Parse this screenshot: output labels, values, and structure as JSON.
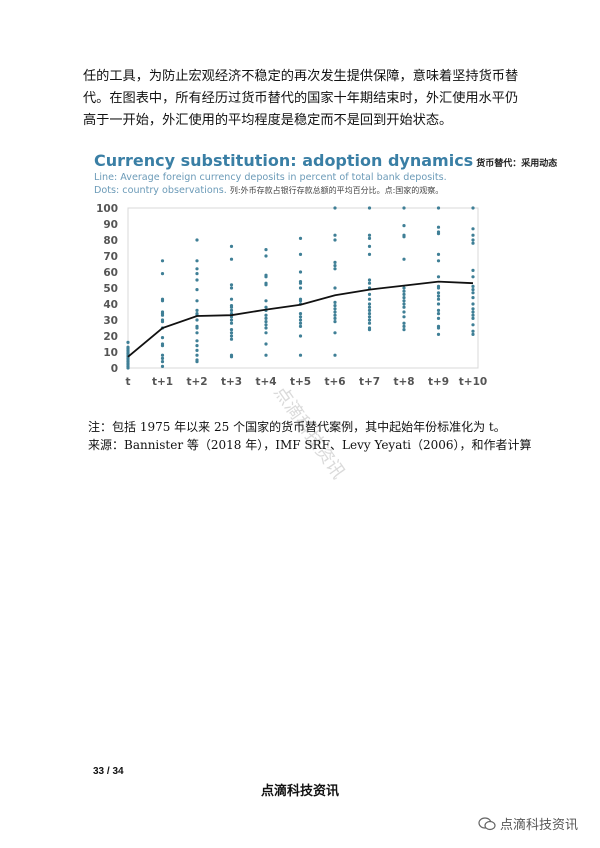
{
  "paragraph": "任的工具，为防止宏观经济不稳定的再次发生提供保障，意味着坚持货币替代。在图表中，所有经历过货币替代的国家十年期结束时，外汇使用水平仍高于一开始，外汇使用的平均程度是稳定而不是回到开始状态。",
  "chart_title": "Currency substitution: adoption dynamics",
  "chart_title_cn": "货币替代：采用动态",
  "chart_subtitle_1": "Line: Average foreign currency deposits in percent of total bank deposits.",
  "chart_subtitle_2": "Dots: country observations.",
  "chart_subtitle_cn": "列:外币存款占银行存款总额的平均百分比。点:国家的观察。",
  "chart_data": {
    "type": "line+scatter",
    "categories": [
      "t",
      "t+1",
      "t+2",
      "t+3",
      "t+4",
      "t+5",
      "t+6",
      "t+7",
      "t+8",
      "t+9",
      "t+10"
    ],
    "ylim": [
      0,
      100
    ],
    "yticks": [
      0,
      10,
      20,
      30,
      40,
      50,
      60,
      70,
      80,
      90,
      100
    ],
    "grid": false,
    "colors": {
      "line": "#111111",
      "dots": "#3f7f96"
    },
    "line_values": [
      7,
      25,
      32.5,
      33,
      36.5,
      39.5,
      45.5,
      49,
      51.5,
      54,
      53
    ],
    "dots": [
      [
        0,
        1,
        2,
        3,
        4,
        5,
        6,
        7,
        8,
        9,
        10,
        11,
        12,
        13,
        16
      ],
      [
        1,
        4,
        6,
        8,
        14,
        15,
        19,
        25,
        29,
        30,
        33,
        34,
        35,
        42,
        43,
        59,
        67
      ],
      [
        4,
        5,
        8,
        11,
        14,
        17,
        22,
        25,
        26,
        30,
        33,
        34,
        36,
        42,
        49,
        55,
        59,
        62,
        67,
        80
      ],
      [
        7,
        8,
        18,
        20,
        22,
        24,
        28,
        30,
        32,
        34,
        36,
        38,
        39,
        43,
        50,
        52,
        68,
        76
      ],
      [
        8,
        15,
        22,
        25,
        27,
        29,
        31,
        33,
        36,
        38,
        42,
        52,
        53,
        57,
        58,
        70,
        74
      ],
      [
        8,
        20,
        26,
        28,
        30,
        32,
        34,
        40,
        42,
        43,
        50,
        53,
        54,
        60,
        71,
        81
      ],
      [
        8,
        22,
        29,
        31,
        33,
        35,
        37,
        39,
        41,
        50,
        62,
        64,
        66,
        80,
        83,
        100
      ],
      [
        24,
        25,
        28,
        30,
        32,
        34,
        36,
        38,
        40,
        43,
        46,
        50,
        53,
        55,
        71,
        76,
        81,
        83,
        100
      ],
      [
        24,
        26,
        28,
        32,
        35,
        38,
        40,
        42,
        44,
        46,
        48,
        50,
        68,
        82,
        83,
        89,
        100
      ],
      [
        21,
        25,
        26,
        31,
        34,
        36,
        40,
        43,
        45,
        47,
        50,
        51,
        57,
        67,
        71,
        84,
        85,
        88,
        100
      ],
      [
        21,
        23,
        27,
        31,
        33,
        35,
        37,
        40,
        44,
        47,
        49,
        51,
        57,
        61,
        78,
        80,
        83,
        87,
        100
      ]
    ]
  },
  "note": "注：包括 1975 年以来 25 个国家的货币替代案例，其中起始年份标准化为 t。",
  "source": "来源：Bannister 等（2018 年），IMF SRF、Levy Yeyati（2006），和作者计算",
  "page_number": "33 / 34",
  "footer": "点滴科技资讯",
  "watermark": "点滴科技资讯"
}
